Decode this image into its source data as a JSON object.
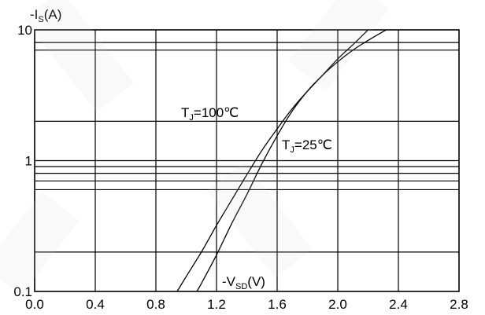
{
  "chart_data": {
    "type": "line",
    "title": "",
    "ylabel": "-I_S(A)",
    "ylabel_main": "-I",
    "ylabel_sub": "S",
    "ylabel_unit": "(A)",
    "xlabel": "-V_SD(V)",
    "xlabel_main": "-V",
    "xlabel_sub": "SD",
    "xlabel_unit": "(V)",
    "xlim": [
      0.0,
      2.8
    ],
    "ylim": [
      0.1,
      10
    ],
    "yscale": "log",
    "grid": true,
    "x_ticks": [
      0.0,
      0.4,
      0.8,
      1.2,
      1.6,
      2.0,
      2.4,
      2.8
    ],
    "x_tick_labels": [
      "0.0",
      "0.4",
      "0.8",
      "1.2",
      "1.6",
      "2.0",
      "2.4",
      "2.8"
    ],
    "y_tick_labels": [
      "0.1",
      "1",
      "10"
    ],
    "y_grid_values": [
      0.2,
      0.6,
      0.7,
      0.8,
      0.9,
      2,
      7,
      8
    ],
    "series": [
      {
        "name": "T_J=100℃",
        "label_main": "T",
        "label_sub": "J",
        "label_rest": "=100℃",
        "x": [
          0.94,
          1.0,
          1.1,
          1.2,
          1.3,
          1.4,
          1.5,
          1.6,
          1.7,
          1.8,
          1.9,
          2.0,
          2.1,
          2.2
        ],
        "y": [
          0.1,
          0.13,
          0.2,
          0.32,
          0.5,
          0.78,
          1.2,
          1.75,
          2.5,
          3.4,
          4.5,
          6.0,
          7.7,
          10
        ]
      },
      {
        "name": "T_J=25℃",
        "label_main": "T",
        "label_sub": "J",
        "label_rest": "=25℃",
        "x": [
          1.07,
          1.1,
          1.2,
          1.3,
          1.4,
          1.5,
          1.6,
          1.7,
          1.8,
          1.9,
          2.0,
          2.1,
          2.2,
          2.32
        ],
        "y": [
          0.1,
          0.115,
          0.19,
          0.33,
          0.55,
          0.95,
          1.55,
          2.4,
          3.4,
          4.5,
          5.7,
          7.0,
          8.3,
          10
        ]
      }
    ]
  }
}
